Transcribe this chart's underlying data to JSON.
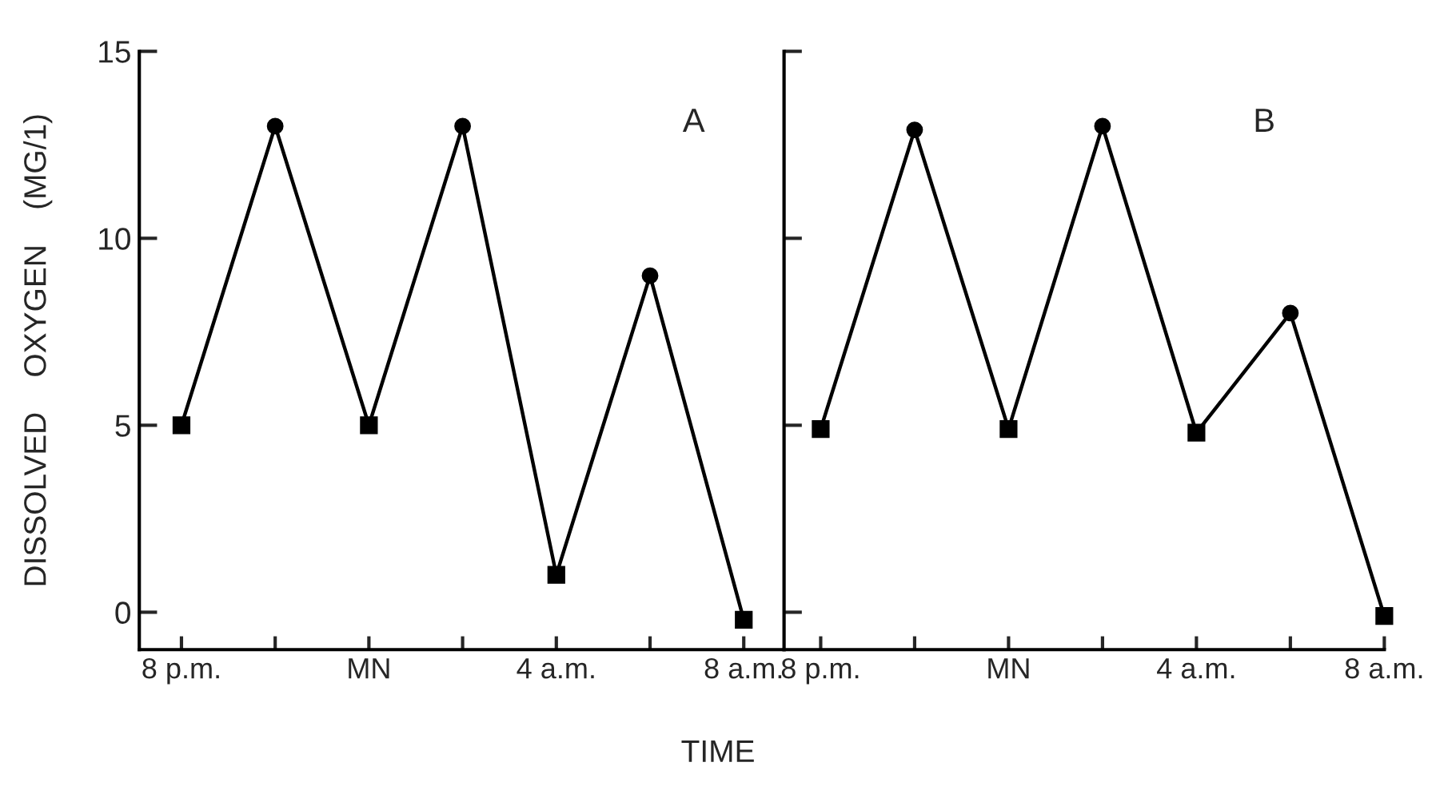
{
  "chart_data": [
    {
      "type": "line",
      "ylabel": "DISSOLVED    OXYGEN    (MG/1)",
      "annotations": [
        "A"
      ],
      "ylim": [
        -1,
        15
      ],
      "yticks": [
        0,
        5,
        10,
        15
      ],
      "categories": [
        "8 p.m.",
        null,
        "MN",
        null,
        "4 a.m.",
        null,
        "8 a.m."
      ],
      "grid": false,
      "legend": false,
      "line_style": "solid",
      "series": [
        {
          "color": "#000000",
          "marker": [
            "square",
            "circle",
            "square",
            "circle",
            "square",
            "circle",
            "square"
          ],
          "values": [
            5,
            13,
            5,
            13,
            1,
            9,
            -0.2
          ]
        }
      ]
    },
    {
      "type": "line",
      "xlabel": "TIME",
      "annotations": [
        "B"
      ],
      "ylim": [
        -1,
        15
      ],
      "yticks": [
        {
          "value": 0,
          "label": null
        },
        {
          "value": 5,
          "label": null
        },
        {
          "value": 10,
          "label": null
        },
        {
          "value": 15,
          "label": null
        }
      ],
      "tick_labels": "x",
      "categories": [
        "8 p.m.",
        null,
        "MN",
        null,
        "4 a.m.",
        null,
        "8 a.m."
      ],
      "grid": false,
      "legend": false,
      "line_style": "solid",
      "series": [
        {
          "color": "#000000",
          "marker": [
            "square",
            "circle",
            "square",
            "circle",
            "square",
            "circle",
            "square"
          ],
          "values": [
            4.9,
            12.9,
            4.9,
            13,
            4.8,
            8,
            -0.1
          ]
        }
      ]
    }
  ]
}
